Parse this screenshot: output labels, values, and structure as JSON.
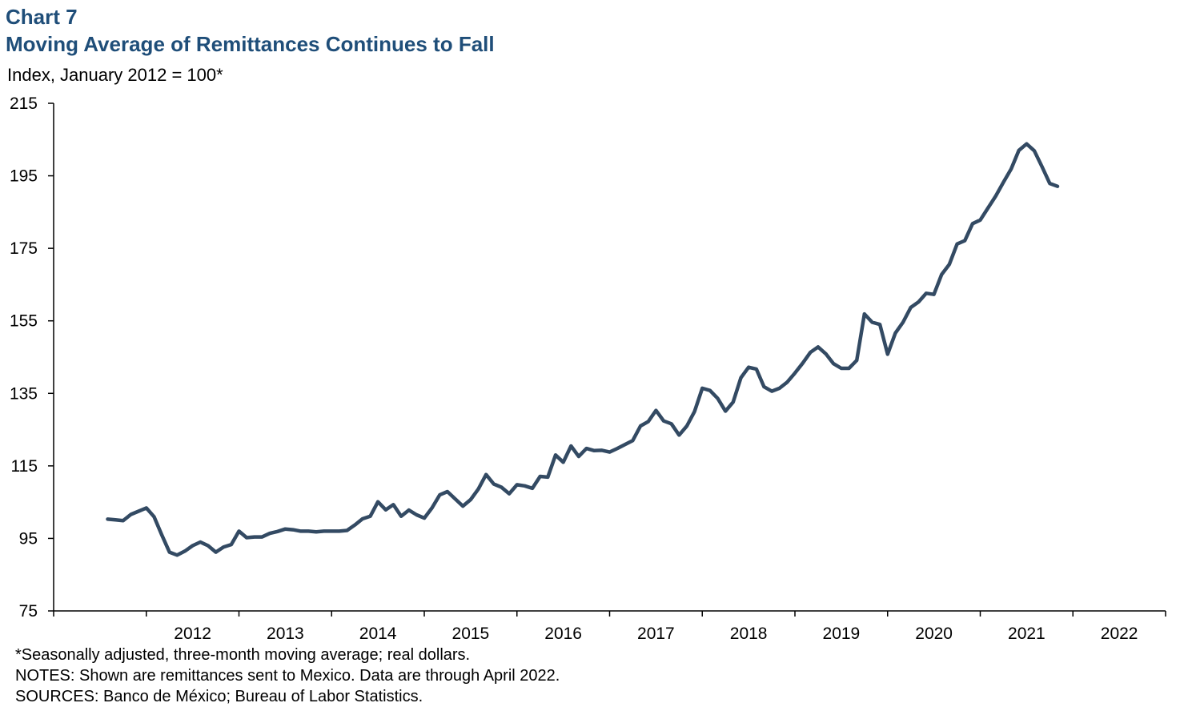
{
  "header": {
    "chart_number": "Chart 7",
    "title": "Moving Average of Remittances Continues to Fall",
    "subtitle": "Index, January 2012 = 100*"
  },
  "footnotes": {
    "asterisk": "*Seasonally adjusted,  three-month  moving average; real dollars.",
    "notes": "NOTES: Shown are remittances sent to Mexico. Data are through  April 2022.",
    "sources": "SOURCES: Banco de México; Bureau  of Labor Statistics."
  },
  "colors": {
    "line": "#334a63",
    "title": "#1f4e79",
    "axis": "#000000"
  },
  "chart_data": {
    "type": "line",
    "title": "Moving Average of Remittances Continues to Fall",
    "ylabel": "Index, January 2012 = 100*",
    "xlabel": "",
    "ylim": [
      75,
      215
    ],
    "yticks": [
      75,
      95,
      115,
      135,
      155,
      175,
      195,
      215
    ],
    "xticks": [
      "2012",
      "2013",
      "2014",
      "2015",
      "2016",
      "2017",
      "2018",
      "2019",
      "2020",
      "2021",
      "2022"
    ],
    "grid": false,
    "x_start": "2011-08",
    "x_end": "2022-04",
    "series": [
      {
        "values": [
          100.3,
          100.1,
          99.9,
          101.6,
          102.5,
          103.4,
          101.0,
          96.0,
          91.2,
          90.4,
          91.5,
          93.0,
          94.0,
          93.0,
          91.2,
          92.6,
          93.3,
          97.0,
          95.2,
          95.4,
          95.4,
          96.4,
          96.9,
          97.6,
          97.4,
          97.0,
          97.0,
          96.8,
          97.0,
          97.0,
          97.0,
          97.2,
          98.7,
          100.4,
          101.1,
          105.1,
          102.9,
          104.3,
          101.1,
          102.8,
          101.5,
          100.6,
          103.4,
          107.0,
          107.9,
          105.9,
          103.9,
          105.7,
          108.6,
          112.6,
          110.0,
          109.1,
          107.3,
          109.8,
          109.5,
          108.8,
          112.1,
          111.9,
          118.0,
          116.0,
          120.5,
          117.6,
          119.8,
          119.2,
          119.3,
          118.8,
          119.8,
          120.9,
          122.0,
          126.0,
          127.2,
          130.3,
          127.4,
          126.6,
          123.5,
          126.0,
          130.0,
          136.4,
          135.8,
          133.6,
          130.1,
          132.6,
          139.3,
          142.2,
          141.7,
          136.8,
          135.6,
          136.4,
          138.1,
          140.6,
          143.3,
          146.3,
          147.8,
          145.9,
          143.2,
          141.9,
          141.9,
          144.1,
          156.9,
          154.6,
          154.0,
          145.8,
          151.6,
          154.6,
          158.7,
          160.2,
          162.6,
          162.3,
          167.8,
          170.6,
          176.2,
          177.1,
          181.8,
          182.8,
          186.1,
          189.4,
          193.2,
          196.9,
          202.0,
          203.8,
          201.9,
          197.5,
          192.9,
          192.1
        ]
      }
    ]
  }
}
